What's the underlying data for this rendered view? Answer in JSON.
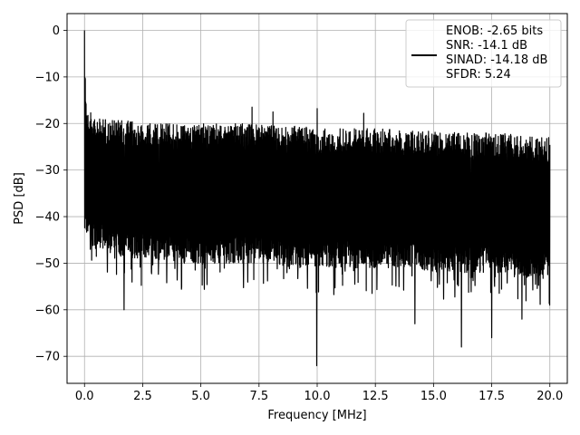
{
  "chart_data": {
    "type": "line",
    "xlabel": "Frequency [MHz]",
    "ylabel": "PSD [dB]",
    "xlim": [
      -0.75,
      20.75
    ],
    "ylim": [
      -75.8,
      3.6
    ],
    "x_ticks": [
      0.0,
      2.5,
      5.0,
      7.5,
      10.0,
      12.5,
      15.0,
      17.5,
      20.0
    ],
    "x_tick_labels": [
      "0.0",
      "2.5",
      "5.0",
      "7.5",
      "10.0",
      "12.5",
      "15.0",
      "17.5",
      "20.0"
    ],
    "y_ticks": [
      0,
      -10,
      -20,
      -30,
      -40,
      -50,
      -60,
      -70
    ],
    "y_tick_labels": [
      "0",
      "−10",
      "−20",
      "−30",
      "−40",
      "−50",
      "−60",
      "−70"
    ],
    "grid": true,
    "legend": {
      "placement": "top-right",
      "lines": [
        "ENOB: -2.65 bits",
        "SNR: -14.1 dB",
        "SINAD: -14.18 dB",
        "SFDR: 5.24"
      ]
    },
    "series": [
      {
        "color": "#000000",
        "description_points": {
          "x": [
            0.0,
            0.01,
            0.03,
            0.06,
            0.1,
            0.15,
            0.2,
            0.3,
            0.5,
            1.0,
            2.0,
            3.0,
            4.0,
            5.0,
            6.0,
            7.0,
            8.0,
            9.0,
            10.0,
            11.0,
            12.0,
            13.0,
            14.0,
            15.0,
            16.0,
            17.0,
            18.0,
            19.0,
            20.0
          ],
          "upper_envelope": [
            0,
            -5,
            -9,
            -12,
            -14,
            -16,
            -17,
            -18,
            -19,
            -19,
            -19.5,
            -20,
            -20,
            -20,
            -20,
            -20,
            -20.5,
            -20.5,
            -21,
            -21,
            -21,
            -21,
            -21.5,
            -21.5,
            -22,
            -22,
            -22,
            -22.5,
            -23
          ],
          "lower_envelope": [
            -48,
            -46,
            -44,
            -44,
            -44,
            -44,
            -45,
            -46,
            -47,
            -48,
            -49,
            -49,
            -50,
            -50,
            -50,
            -50,
            -50,
            -51,
            -51,
            -51,
            -51,
            -51,
            -51,
            -52,
            -52,
            -52,
            -52,
            -53,
            -53
          ]
        },
        "deep_nulls": [
          {
            "x": 1.7,
            "y": -60
          },
          {
            "x": 9.98,
            "y": -72
          },
          {
            "x": 14.2,
            "y": -63
          },
          {
            "x": 16.2,
            "y": -68
          },
          {
            "x": 17.5,
            "y": -66
          },
          {
            "x": 18.8,
            "y": -62
          }
        ],
        "peak_spurs": [
          {
            "x": 7.2,
            "y": -16.5
          },
          {
            "x": 10.0,
            "y": -16.8
          },
          {
            "x": 8.1,
            "y": -17.5
          },
          {
            "x": 12.0,
            "y": -17.8
          }
        ]
      }
    ]
  }
}
